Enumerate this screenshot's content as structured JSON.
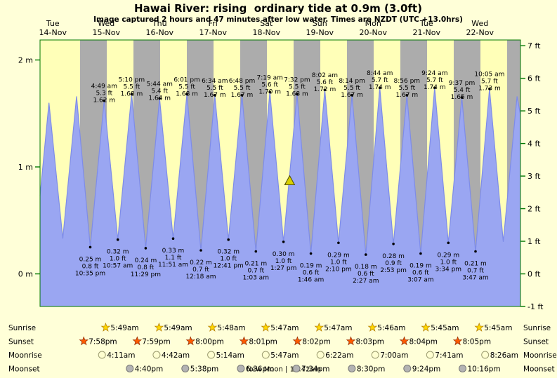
{
  "chart_data": {
    "type": "area",
    "title": "Hawai River: rising  ordinary tide at 0.9m (3.0ft)",
    "subtitle": "Image captured 2 hours and 47 minutes after low water. Times are NZDT (UTC +13.0hrs)",
    "x_range_days": 9,
    "y_range_m": [
      -0.3048,
      2.19
    ],
    "days": [
      {
        "weekday": "Tue",
        "date": "14-Nov"
      },
      {
        "weekday": "Wed",
        "date": "15-Nov"
      },
      {
        "weekday": "Thu",
        "date": "16-Nov"
      },
      {
        "weekday": "Fri",
        "date": "17-Nov"
      },
      {
        "weekday": "Sat",
        "date": "18-Nov"
      },
      {
        "weekday": "Sun",
        "date": "19-Nov"
      },
      {
        "weekday": "Mon",
        "date": "20-Nov"
      },
      {
        "weekday": "Tue",
        "date": "21-Nov"
      },
      {
        "weekday": "Wed",
        "date": "22-Nov"
      }
    ],
    "night_band_hours": {
      "start": 18,
      "end": 6
    },
    "y_axis_left": {
      "unit": "m",
      "ticks": [
        {
          "value": 0,
          "label": "0 m"
        },
        {
          "value": 1,
          "label": "1 m"
        },
        {
          "value": 2,
          "label": "2 m"
        }
      ]
    },
    "y_axis_right": {
      "unit": "ft",
      "ticks": [
        {
          "value": -1,
          "label": "-1 ft"
        },
        {
          "value": 0,
          "label": "0 ft"
        },
        {
          "value": 1,
          "label": "1 ft"
        },
        {
          "value": 2,
          "label": "2 ft"
        },
        {
          "value": 3,
          "label": "3 ft"
        },
        {
          "value": 4,
          "label": "4 ft"
        },
        {
          "value": 5,
          "label": "5 ft"
        },
        {
          "value": 6,
          "label": "6 ft"
        },
        {
          "value": 7,
          "label": "7 ft"
        }
      ]
    },
    "capture_marker": {
      "low_day": 4,
      "low_time": "1:27 pm",
      "offset_minutes": 167,
      "height_m": 0.9
    },
    "tide_events": [
      {
        "day": 0,
        "time": "12:00 am",
        "m": 0.73,
        "type": "edge",
        "labeled": false
      },
      {
        "day": 0,
        "time": "4:01 am",
        "m": 1.6,
        "type": "high",
        "labeled": false
      },
      {
        "day": 0,
        "time": "10:14 am",
        "m": 0.33,
        "type": "low",
        "labeled": false
      },
      {
        "day": 0,
        "time": "4:25 pm",
        "m": 1.66,
        "type": "high",
        "labeled": false
      },
      {
        "day": 0,
        "time": "10:35 pm",
        "m": 0.25,
        "ft": 0.8,
        "type": "low",
        "labeled": true
      },
      {
        "day": 1,
        "time": "4:49 am",
        "m": 1.62,
        "ft": 5.3,
        "type": "high",
        "labeled": true
      },
      {
        "day": 1,
        "time": "10:57 am",
        "m": 0.32,
        "ft": 1.0,
        "type": "low",
        "labeled": true
      },
      {
        "day": 1,
        "time": "5:10 pm",
        "m": 1.68,
        "ft": 5.5,
        "type": "high",
        "labeled": true
      },
      {
        "day": 1,
        "time": "11:29 pm",
        "m": 0.24,
        "ft": 0.8,
        "type": "low",
        "labeled": true
      },
      {
        "day": 2,
        "time": "5:44 am",
        "m": 1.64,
        "ft": 5.4,
        "type": "high",
        "labeled": true
      },
      {
        "day": 2,
        "time": "11:51 am",
        "m": 0.33,
        "ft": 1.1,
        "type": "low",
        "labeled": true
      },
      {
        "day": 2,
        "time": "6:01 pm",
        "m": 1.68,
        "ft": 5.5,
        "type": "high",
        "labeled": true
      },
      {
        "day": 3,
        "time": "12:18 am",
        "m": 0.22,
        "ft": 0.7,
        "type": "low",
        "labeled": true
      },
      {
        "day": 3,
        "time": "6:34 am",
        "m": 1.67,
        "ft": 5.5,
        "type": "high",
        "labeled": true
      },
      {
        "day": 3,
        "time": "12:41 pm",
        "m": 0.32,
        "ft": 1.0,
        "type": "low",
        "labeled": true
      },
      {
        "day": 3,
        "time": "6:48 pm",
        "m": 1.67,
        "ft": 5.5,
        "type": "high",
        "labeled": true
      },
      {
        "day": 4,
        "time": "1:03 am",
        "m": 0.21,
        "ft": 0.7,
        "type": "low",
        "labeled": true
      },
      {
        "day": 4,
        "time": "7:19 am",
        "m": 1.7,
        "ft": 5.6,
        "type": "high",
        "labeled": true
      },
      {
        "day": 4,
        "time": "1:27 pm",
        "m": 0.3,
        "ft": 1.0,
        "type": "low",
        "labeled": true
      },
      {
        "day": 4,
        "time": "7:32 pm",
        "m": 1.68,
        "ft": 5.5,
        "type": "high",
        "labeled": true
      },
      {
        "day": 5,
        "time": "1:46 am",
        "m": 0.19,
        "ft": 0.6,
        "type": "low",
        "labeled": true
      },
      {
        "day": 5,
        "time": "8:02 am",
        "m": 1.72,
        "ft": 5.6,
        "type": "high",
        "labeled": true
      },
      {
        "day": 5,
        "time": "2:10 pm",
        "m": 0.29,
        "ft": 1.0,
        "type": "low",
        "labeled": true
      },
      {
        "day": 5,
        "time": "8:14 pm",
        "m": 1.67,
        "ft": 5.5,
        "type": "high",
        "labeled": true
      },
      {
        "day": 6,
        "time": "2:27 am",
        "m": 0.18,
        "ft": 0.6,
        "type": "low",
        "labeled": true
      },
      {
        "day": 6,
        "time": "8:44 am",
        "m": 1.74,
        "ft": 5.7,
        "type": "high",
        "labeled": true
      },
      {
        "day": 6,
        "time": "2:53 pm",
        "m": 0.28,
        "ft": 0.9,
        "type": "low",
        "labeled": true
      },
      {
        "day": 6,
        "time": "8:56 pm",
        "m": 1.67,
        "ft": 5.5,
        "type": "high",
        "labeled": true
      },
      {
        "day": 7,
        "time": "3:07 am",
        "m": 0.19,
        "ft": 0.6,
        "type": "low",
        "labeled": true
      },
      {
        "day": 7,
        "time": "9:24 am",
        "m": 1.74,
        "ft": 5.7,
        "type": "high",
        "labeled": true
      },
      {
        "day": 7,
        "time": "3:34 pm",
        "m": 0.29,
        "ft": 1.0,
        "type": "low",
        "labeled": true
      },
      {
        "day": 7,
        "time": "9:37 pm",
        "m": 1.65,
        "ft": 5.4,
        "type": "high",
        "labeled": true
      },
      {
        "day": 8,
        "time": "3:47 am",
        "m": 0.21,
        "ft": 0.7,
        "type": "low",
        "labeled": true
      },
      {
        "day": 8,
        "time": "10:05 am",
        "m": 1.73,
        "ft": 5.7,
        "type": "high",
        "labeled": true
      },
      {
        "day": 8,
        "time": "4:16 pm",
        "m": 0.3,
        "type": "low",
        "labeled": false
      },
      {
        "day": 8,
        "time": "10:28 pm",
        "m": 1.66,
        "type": "high",
        "labeled": false
      },
      {
        "day": 8,
        "time": "11:59 pm",
        "m": 1.49,
        "type": "edge",
        "labeled": false
      }
    ]
  },
  "astro": {
    "sunrise": {
      "label": "Sunrise",
      "entries": [
        {
          "day": 1,
          "time": "5:49am"
        },
        {
          "day": 2,
          "time": "5:49am"
        },
        {
          "day": 3,
          "time": "5:48am"
        },
        {
          "day": 4,
          "time": "5:47am"
        },
        {
          "day": 5,
          "time": "5:47am"
        },
        {
          "day": 6,
          "time": "5:46am"
        },
        {
          "day": 7,
          "time": "5:45am"
        },
        {
          "day": 8,
          "time": "5:45am"
        }
      ]
    },
    "sunset": {
      "label": "Sunset",
      "entries": [
        {
          "day": 0,
          "time": "7:58pm"
        },
        {
          "day": 1,
          "time": "7:59pm"
        },
        {
          "day": 2,
          "time": "8:00pm"
        },
        {
          "day": 3,
          "time": "8:01pm"
        },
        {
          "day": 4,
          "time": "8:02pm"
        },
        {
          "day": 5,
          "time": "8:03pm"
        },
        {
          "day": 6,
          "time": "8:04pm"
        },
        {
          "day": 7,
          "time": "8:05pm"
        }
      ]
    },
    "moonrise": {
      "label": "Moonrise",
      "entries": [
        {
          "day": 1,
          "time": "4:11am"
        },
        {
          "day": 2,
          "time": "4:42am"
        },
        {
          "day": 3,
          "time": "5:14am"
        },
        {
          "day": 4,
          "time": "5:47am"
        },
        {
          "day": 5,
          "time": "6:22am"
        },
        {
          "day": 6,
          "time": "7:00am"
        },
        {
          "day": 7,
          "time": "7:41am"
        },
        {
          "day": 8,
          "time": "8:26am"
        }
      ]
    },
    "moonset": {
      "label": "Moonset",
      "note": "New Moon | 12:42am",
      "entries": [
        {
          "day": 1,
          "time": "4:40pm"
        },
        {
          "day": 2,
          "time": "5:38pm"
        },
        {
          "day": 3,
          "time": "6:36pm"
        },
        {
          "day": 4,
          "time": "7:34pm"
        },
        {
          "day": 5,
          "time": "8:30pm"
        },
        {
          "day": 6,
          "time": "9:24pm"
        },
        {
          "day": 7,
          "time": "10:16pm"
        }
      ]
    }
  },
  "colors": {
    "background": "#ffffd8",
    "plot_background": "#ffffb8",
    "night_band": "#acacac",
    "tide_fill": "#9aa6f2",
    "tide_stroke": "#7e8ce8",
    "day_label": "#ff0000",
    "axis": "#007700",
    "marker_fill": "#d9d000",
    "marker_stroke": "#4c4a00",
    "sunrise_star": "#ffd700",
    "sunrise_star_stroke": "#b8860b",
    "sunset_star": "#ff5a00",
    "sunset_star_stroke": "#992f00",
    "moonrise_moon": "#ffffd0",
    "moonrise_moon_stroke": "#9a9a6e",
    "moonset_moon": "#b3b3b3",
    "moonset_moon_stroke": "#777777"
  }
}
